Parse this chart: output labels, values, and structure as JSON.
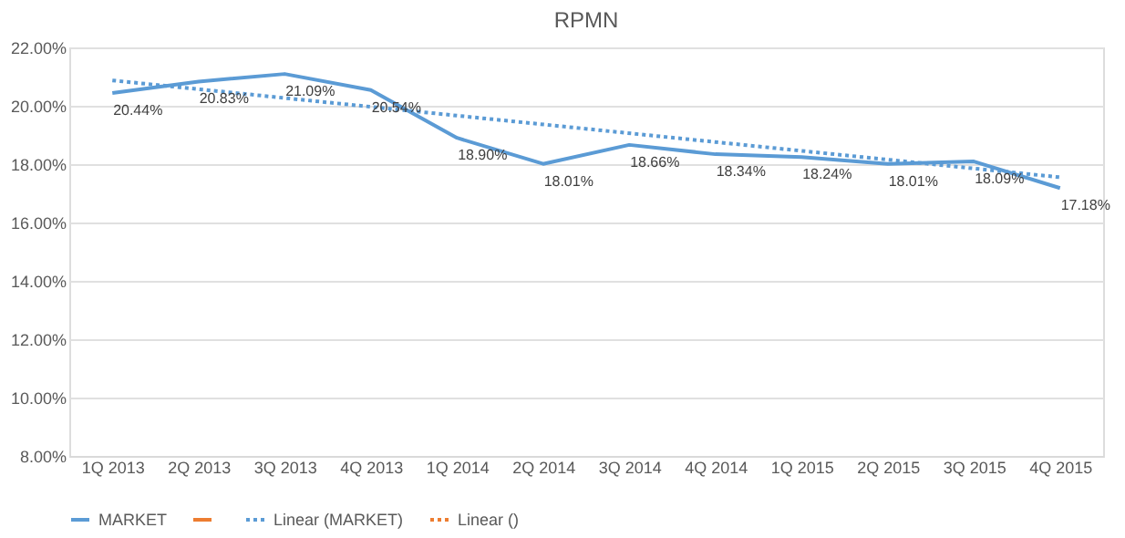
{
  "chart_data": {
    "type": "line",
    "title": "RPMN",
    "categories": [
      "1Q 2013",
      "2Q 2013",
      "3Q 2013",
      "4Q 2013",
      "1Q 2014",
      "2Q 2014",
      "3Q 2014",
      "4Q 2014",
      "1Q 2015",
      "2Q 2015",
      "3Q 2015",
      "4Q 2015"
    ],
    "series": [
      {
        "name": "MARKET",
        "color": "#5b9bd5",
        "line_style": "solid",
        "values": [
          20.44,
          20.83,
          21.09,
          20.54,
          18.9,
          18.01,
          18.66,
          18.34,
          18.24,
          18.01,
          18.09,
          17.18
        ],
        "value_labels": [
          "20.44%",
          "20.83%",
          "21.09%",
          "20.54%",
          "18.90%",
          "18.01%",
          "18.66%",
          "18.34%",
          "18.24%",
          "18.01%",
          "18.09%",
          "17.18%"
        ]
      },
      {
        "color": "#ed7d31",
        "line_style": "solid",
        "values": [
          null,
          null,
          null,
          null,
          null,
          null,
          null,
          null,
          null,
          null,
          null,
          null
        ]
      },
      {
        "name": "Linear (MARKET)",
        "color": "#5b9bd5",
        "line_style": "dotted",
        "x": [
          "1Q 2013",
          "4Q 2015"
        ],
        "values": [
          20.87,
          17.55
        ]
      },
      {
        "name": "Linear ()",
        "color": "#ed7d31",
        "line_style": "dotted",
        "values": [
          null,
          null,
          null,
          null,
          null,
          null,
          null,
          null,
          null,
          null,
          null,
          null
        ]
      }
    ],
    "ylim": [
      8,
      22
    ],
    "yticks": [
      {
        "value": 8,
        "label": "8.00%"
      },
      {
        "value": 10,
        "label": "10.00%"
      },
      {
        "value": 12,
        "label": "12.00%"
      },
      {
        "value": 14,
        "label": "14.00%"
      },
      {
        "value": 16,
        "label": "16.00%"
      },
      {
        "value": 18,
        "label": "18.00%"
      },
      {
        "value": 20,
        "label": "20.00%"
      },
      {
        "value": 22,
        "label": "22.00%"
      }
    ],
    "grid": "y",
    "legend": "bottom",
    "marker": "none"
  }
}
